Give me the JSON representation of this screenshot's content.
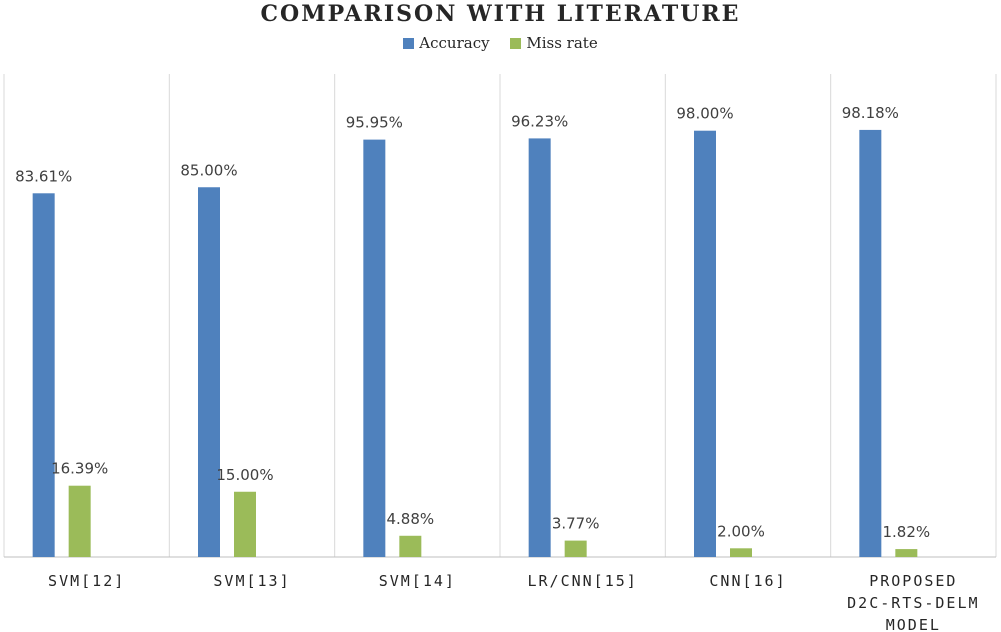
{
  "chart_data": {
    "type": "bar",
    "title": "COMPARISON WITH LITERATURE",
    "categories": [
      [
        "SVM[12]"
      ],
      [
        "SVM[13]"
      ],
      [
        "SVM[14]"
      ],
      [
        "LR/CNN[15]"
      ],
      [
        "CNN[16]"
      ],
      [
        "PROPOSED",
        "D2C-RTS-DELM",
        "MODEL"
      ]
    ],
    "series": [
      {
        "name": "Accuracy",
        "color": "#4F81BD",
        "values": [
          83.61,
          85.0,
          95.95,
          96.23,
          98.0,
          98.18
        ],
        "labels": [
          "83.61%",
          "85.00%",
          "95.95%",
          "96.23%",
          "98.00%",
          "98.18%"
        ]
      },
      {
        "name": "Miss rate",
        "color": "#9BBB59",
        "values": [
          16.39,
          15.0,
          4.88,
          3.77,
          2.0,
          1.82
        ],
        "labels": [
          "16.39%",
          "15.00%",
          "4.88%",
          "3.77%",
          "2.00%",
          "1.82%"
        ]
      }
    ],
    "ylim": [
      0,
      100
    ],
    "grid": false,
    "legend": "top-center"
  }
}
